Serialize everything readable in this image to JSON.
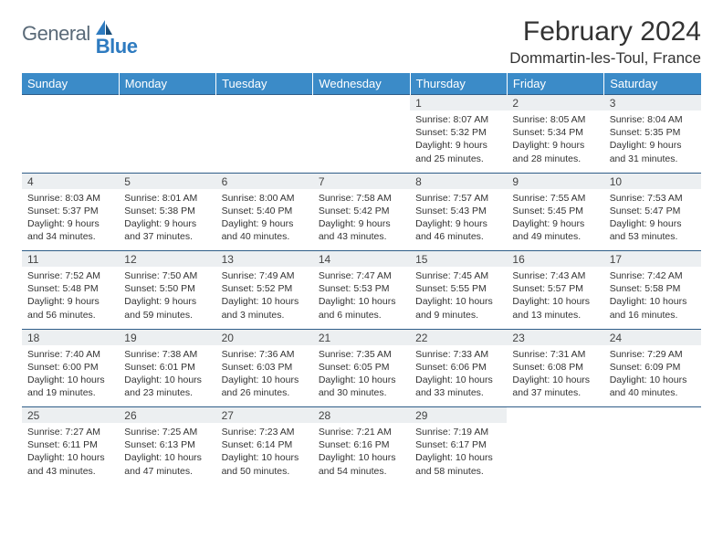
{
  "brand": {
    "word1": "General",
    "word2": "Blue"
  },
  "title": "February 2024",
  "location": "Dommartin-les-Toul, France",
  "header_bg": "#3b8bc8",
  "daynum_bg": "#eceff1",
  "rule_color": "#2f5d88",
  "day_headers": [
    "Sunday",
    "Monday",
    "Tuesday",
    "Wednesday",
    "Thursday",
    "Friday",
    "Saturday"
  ],
  "weeks": [
    [
      null,
      null,
      null,
      null,
      {
        "n": "1",
        "sr": "Sunrise: 8:07 AM",
        "ss": "Sunset: 5:32 PM",
        "d1": "Daylight: 9 hours",
        "d2": "and 25 minutes."
      },
      {
        "n": "2",
        "sr": "Sunrise: 8:05 AM",
        "ss": "Sunset: 5:34 PM",
        "d1": "Daylight: 9 hours",
        "d2": "and 28 minutes."
      },
      {
        "n": "3",
        "sr": "Sunrise: 8:04 AM",
        "ss": "Sunset: 5:35 PM",
        "d1": "Daylight: 9 hours",
        "d2": "and 31 minutes."
      }
    ],
    [
      {
        "n": "4",
        "sr": "Sunrise: 8:03 AM",
        "ss": "Sunset: 5:37 PM",
        "d1": "Daylight: 9 hours",
        "d2": "and 34 minutes."
      },
      {
        "n": "5",
        "sr": "Sunrise: 8:01 AM",
        "ss": "Sunset: 5:38 PM",
        "d1": "Daylight: 9 hours",
        "d2": "and 37 minutes."
      },
      {
        "n": "6",
        "sr": "Sunrise: 8:00 AM",
        "ss": "Sunset: 5:40 PM",
        "d1": "Daylight: 9 hours",
        "d2": "and 40 minutes."
      },
      {
        "n": "7",
        "sr": "Sunrise: 7:58 AM",
        "ss": "Sunset: 5:42 PM",
        "d1": "Daylight: 9 hours",
        "d2": "and 43 minutes."
      },
      {
        "n": "8",
        "sr": "Sunrise: 7:57 AM",
        "ss": "Sunset: 5:43 PM",
        "d1": "Daylight: 9 hours",
        "d2": "and 46 minutes."
      },
      {
        "n": "9",
        "sr": "Sunrise: 7:55 AM",
        "ss": "Sunset: 5:45 PM",
        "d1": "Daylight: 9 hours",
        "d2": "and 49 minutes."
      },
      {
        "n": "10",
        "sr": "Sunrise: 7:53 AM",
        "ss": "Sunset: 5:47 PM",
        "d1": "Daylight: 9 hours",
        "d2": "and 53 minutes."
      }
    ],
    [
      {
        "n": "11",
        "sr": "Sunrise: 7:52 AM",
        "ss": "Sunset: 5:48 PM",
        "d1": "Daylight: 9 hours",
        "d2": "and 56 minutes."
      },
      {
        "n": "12",
        "sr": "Sunrise: 7:50 AM",
        "ss": "Sunset: 5:50 PM",
        "d1": "Daylight: 9 hours",
        "d2": "and 59 minutes."
      },
      {
        "n": "13",
        "sr": "Sunrise: 7:49 AM",
        "ss": "Sunset: 5:52 PM",
        "d1": "Daylight: 10 hours",
        "d2": "and 3 minutes."
      },
      {
        "n": "14",
        "sr": "Sunrise: 7:47 AM",
        "ss": "Sunset: 5:53 PM",
        "d1": "Daylight: 10 hours",
        "d2": "and 6 minutes."
      },
      {
        "n": "15",
        "sr": "Sunrise: 7:45 AM",
        "ss": "Sunset: 5:55 PM",
        "d1": "Daylight: 10 hours",
        "d2": "and 9 minutes."
      },
      {
        "n": "16",
        "sr": "Sunrise: 7:43 AM",
        "ss": "Sunset: 5:57 PM",
        "d1": "Daylight: 10 hours",
        "d2": "and 13 minutes."
      },
      {
        "n": "17",
        "sr": "Sunrise: 7:42 AM",
        "ss": "Sunset: 5:58 PM",
        "d1": "Daylight: 10 hours",
        "d2": "and 16 minutes."
      }
    ],
    [
      {
        "n": "18",
        "sr": "Sunrise: 7:40 AM",
        "ss": "Sunset: 6:00 PM",
        "d1": "Daylight: 10 hours",
        "d2": "and 19 minutes."
      },
      {
        "n": "19",
        "sr": "Sunrise: 7:38 AM",
        "ss": "Sunset: 6:01 PM",
        "d1": "Daylight: 10 hours",
        "d2": "and 23 minutes."
      },
      {
        "n": "20",
        "sr": "Sunrise: 7:36 AM",
        "ss": "Sunset: 6:03 PM",
        "d1": "Daylight: 10 hours",
        "d2": "and 26 minutes."
      },
      {
        "n": "21",
        "sr": "Sunrise: 7:35 AM",
        "ss": "Sunset: 6:05 PM",
        "d1": "Daylight: 10 hours",
        "d2": "and 30 minutes."
      },
      {
        "n": "22",
        "sr": "Sunrise: 7:33 AM",
        "ss": "Sunset: 6:06 PM",
        "d1": "Daylight: 10 hours",
        "d2": "and 33 minutes."
      },
      {
        "n": "23",
        "sr": "Sunrise: 7:31 AM",
        "ss": "Sunset: 6:08 PM",
        "d1": "Daylight: 10 hours",
        "d2": "and 37 minutes."
      },
      {
        "n": "24",
        "sr": "Sunrise: 7:29 AM",
        "ss": "Sunset: 6:09 PM",
        "d1": "Daylight: 10 hours",
        "d2": "and 40 minutes."
      }
    ],
    [
      {
        "n": "25",
        "sr": "Sunrise: 7:27 AM",
        "ss": "Sunset: 6:11 PM",
        "d1": "Daylight: 10 hours",
        "d2": "and 43 minutes."
      },
      {
        "n": "26",
        "sr": "Sunrise: 7:25 AM",
        "ss": "Sunset: 6:13 PM",
        "d1": "Daylight: 10 hours",
        "d2": "and 47 minutes."
      },
      {
        "n": "27",
        "sr": "Sunrise: 7:23 AM",
        "ss": "Sunset: 6:14 PM",
        "d1": "Daylight: 10 hours",
        "d2": "and 50 minutes."
      },
      {
        "n": "28",
        "sr": "Sunrise: 7:21 AM",
        "ss": "Sunset: 6:16 PM",
        "d1": "Daylight: 10 hours",
        "d2": "and 54 minutes."
      },
      {
        "n": "29",
        "sr": "Sunrise: 7:19 AM",
        "ss": "Sunset: 6:17 PM",
        "d1": "Daylight: 10 hours",
        "d2": "and 58 minutes."
      },
      null,
      null
    ]
  ]
}
